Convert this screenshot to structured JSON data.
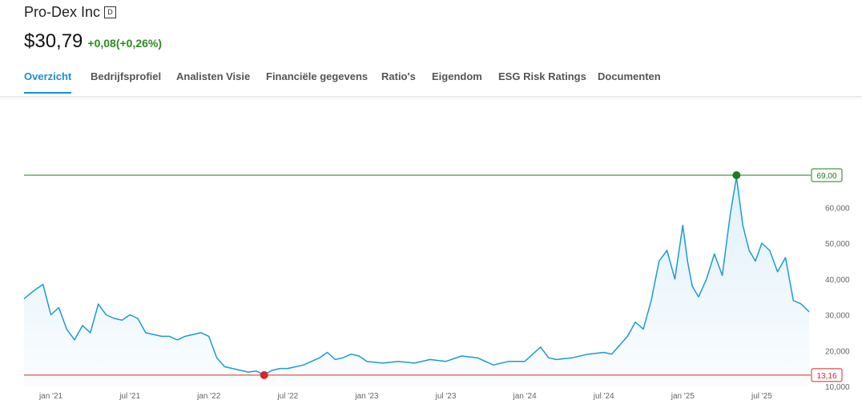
{
  "header": {
    "company": "Pro-Dex Inc",
    "badge": "D",
    "price": "$30,79",
    "change": "+0,08(+0,26%)"
  },
  "tabs": [
    {
      "label": "Overzicht",
      "active": true
    },
    {
      "label": "Bedrijfsprofiel"
    },
    {
      "label": "Analisten Visie"
    },
    {
      "label": "Financiële gegevens"
    },
    {
      "label": "Ratio's"
    },
    {
      "label": "Eigendom"
    },
    {
      "label": "ESG Risk Ratings"
    },
    {
      "label": "Documenten"
    }
  ],
  "colors": {
    "line": "#1a9ad6",
    "area": "#dff0fa",
    "high": "#1f7a1f",
    "low": "#d62828",
    "accent": "#1a8fd4"
  },
  "chart_data": {
    "type": "area",
    "y_ticks": [
      "10,000",
      "20,000",
      "30,000",
      "40,000",
      "50,000",
      "60,000"
    ],
    "y_tick_values": [
      10,
      20,
      30,
      40,
      50,
      60
    ],
    "x_ticks": [
      "jan '21",
      "jul '21",
      "jan '22",
      "jul '22",
      "jan '23",
      "jul '23",
      "jan '24",
      "jul '24",
      "jan '25",
      "jul '25"
    ],
    "x_tick_values": [
      2021.0,
      2021.5,
      2022.0,
      2022.5,
      2023.0,
      2023.5,
      2024.0,
      2024.5,
      2025.0,
      2025.5
    ],
    "ylim": [
      10,
      70
    ],
    "xlim": [
      2020.83,
      2025.82
    ],
    "high": {
      "value": 69.0,
      "label": "69,00",
      "x": 2025.34
    },
    "low": {
      "value": 13.16,
      "label": "13,16",
      "x": 2022.35
    },
    "x": [
      2020.83,
      2020.9,
      2020.95,
      2021.0,
      2021.05,
      2021.1,
      2021.15,
      2021.2,
      2021.25,
      2021.3,
      2021.35,
      2021.4,
      2021.45,
      2021.5,
      2021.55,
      2021.6,
      2021.65,
      2021.7,
      2021.75,
      2021.8,
      2021.85,
      2021.9,
      2021.95,
      2022.0,
      2022.05,
      2022.1,
      2022.15,
      2022.2,
      2022.25,
      2022.3,
      2022.35,
      2022.4,
      2022.45,
      2022.5,
      2022.55,
      2022.6,
      2022.65,
      2022.7,
      2022.75,
      2022.8,
      2022.85,
      2022.9,
      2022.95,
      2023.0,
      2023.1,
      2023.2,
      2023.3,
      2023.4,
      2023.5,
      2023.6,
      2023.7,
      2023.8,
      2023.9,
      2024.0,
      2024.05,
      2024.1,
      2024.15,
      2024.2,
      2024.3,
      2024.4,
      2024.5,
      2024.55,
      2024.6,
      2024.65,
      2024.7,
      2024.75,
      2024.8,
      2024.85,
      2024.9,
      2024.95,
      2025.0,
      2025.03,
      2025.06,
      2025.1,
      2025.15,
      2025.2,
      2025.25,
      2025.3,
      2025.34,
      2025.38,
      2025.42,
      2025.46,
      2025.5,
      2025.55,
      2025.6,
      2025.65,
      2025.7,
      2025.75,
      2025.8
    ],
    "values": [
      34.5,
      37.0,
      38.5,
      30.0,
      32.0,
      26.0,
      23.0,
      27.0,
      25.0,
      33.0,
      30.0,
      29.0,
      28.5,
      30.0,
      29.0,
      25.0,
      24.5,
      24.0,
      24.0,
      23.0,
      24.0,
      24.5,
      25.0,
      24.0,
      18.0,
      15.5,
      15.0,
      14.5,
      14.0,
      14.3,
      13.2,
      14.5,
      15.0,
      15.0,
      15.5,
      16.0,
      17.0,
      18.0,
      19.5,
      17.5,
      18.0,
      19.0,
      18.5,
      17.0,
      16.5,
      17.0,
      16.5,
      17.5,
      17.0,
      18.5,
      18.0,
      16.0,
      17.0,
      17.0,
      19.0,
      21.0,
      18.0,
      17.5,
      18.0,
      19.0,
      19.5,
      19.0,
      21.5,
      24.0,
      28.0,
      26.0,
      34.0,
      45.0,
      48.0,
      40.0,
      55.0,
      45.0,
      38.0,
      35.0,
      40.0,
      47.0,
      41.0,
      58.0,
      68.5,
      55.0,
      48.0,
      45.0,
      50.0,
      48.0,
      42.0,
      46.0,
      34.0,
      33.0,
      30.8
    ]
  }
}
